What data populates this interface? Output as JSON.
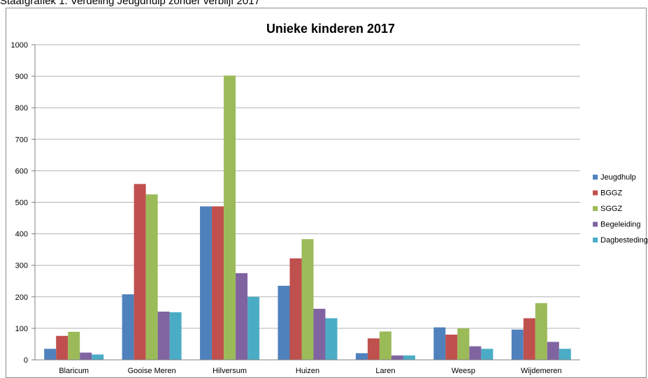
{
  "caption": "Staafgrafiek 1: Verdeling Jeugdhulp zonder verblijf 2017",
  "chart_data": {
    "type": "bar",
    "title": "Unieke kinderen 2017",
    "xlabel": "",
    "ylabel": "",
    "ylim": [
      0,
      1000
    ],
    "yticks": [
      "0",
      "100",
      "200",
      "300",
      "400",
      "500",
      "600",
      "700",
      "800",
      "900",
      "1000"
    ],
    "grid": true,
    "legend_position": "right",
    "categories": [
      "Blaricum",
      "Gooise Meren",
      "Hilversum",
      "Huizen",
      "Laren",
      "Weesp",
      "Wijdemeren"
    ],
    "series": [
      {
        "name": "Jeugdhulp",
        "color": "#4f81bd",
        "values": [
          35,
          208,
          487,
          235,
          21,
          103,
          96
        ]
      },
      {
        "name": "BGGZ",
        "color": "#c0504d",
        "values": [
          76,
          558,
          487,
          322,
          68,
          80,
          132
        ]
      },
      {
        "name": "SGGZ",
        "color": "#9bbb59",
        "values": [
          89,
          525,
          902,
          383,
          90,
          100,
          180
        ]
      },
      {
        "name": "Begeleiding",
        "color": "#8064a2",
        "values": [
          23,
          153,
          275,
          162,
          14,
          43,
          57
        ]
      },
      {
        "name": "Dagbesteding",
        "color": "#4bacc6",
        "values": [
          17,
          151,
          200,
          132,
          14,
          35,
          35
        ]
      }
    ]
  }
}
